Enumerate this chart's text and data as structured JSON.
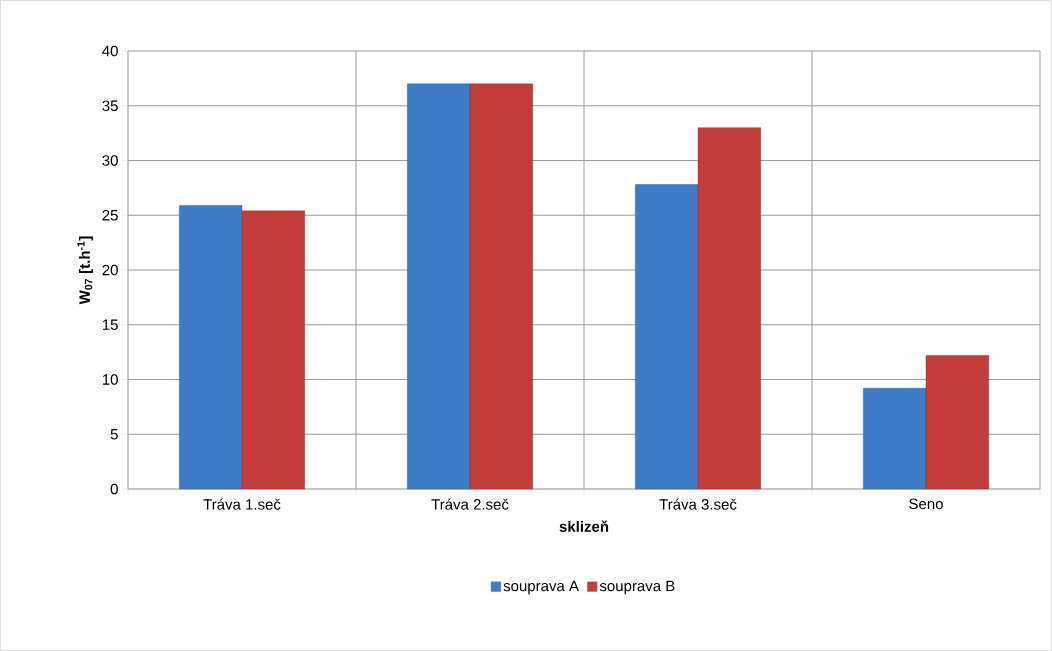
{
  "chart_data": {
    "type": "bar",
    "xlabel": "sklizeň",
    "ylabel": "**W$_{07}$ [t.h$^{-1}$]**",
    "categories": [
      "Tráva 1.seč",
      "Tráva 2.seč",
      "Tráva 3.seč",
      "Seno"
    ],
    "series": [
      {
        "name": "souprava A",
        "color": "#3d7cc9",
        "values": [
          25.9,
          37.0,
          27.8,
          9.2
        ]
      },
      {
        "name": "souprava B",
        "color": "#c43d3b",
        "values": [
          25.4,
          37.0,
          33.0,
          12.2
        ]
      }
    ],
    "ylim": [
      0,
      40
    ],
    "yticks": [
      0,
      5,
      10,
      15,
      20,
      25,
      30,
      35,
      40
    ],
    "grid": true,
    "legend": "bottom"
  }
}
